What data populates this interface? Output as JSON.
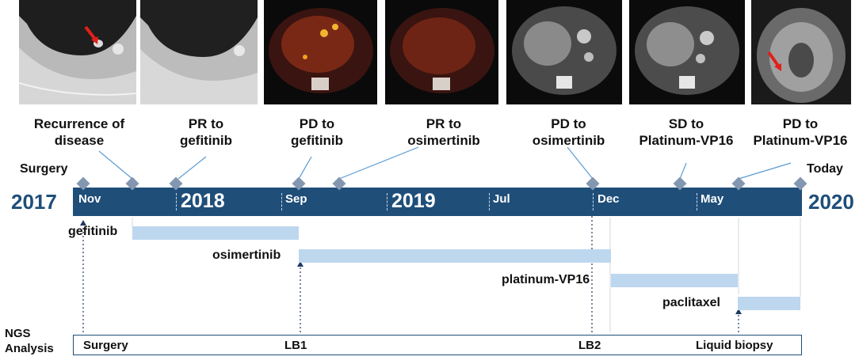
{
  "scans": [
    {
      "kind": "ct-lung",
      "arrow": true
    },
    {
      "kind": "ct-lung",
      "arrow": false
    },
    {
      "kind": "pet",
      "arrow": false
    },
    {
      "kind": "pet",
      "arrow": false
    },
    {
      "kind": "ct-abdomen",
      "arrow": false
    },
    {
      "kind": "ct-abdomen",
      "arrow": false
    },
    {
      "kind": "mri-brain",
      "arrow": true
    }
  ],
  "events": {
    "recurrence": "Recurrence of\ndisease",
    "pr_gefitinib": "PR to\ngefitinib",
    "pd_gefitinib": "PD to\ngefitinib",
    "pr_osimertinib": "PR to\nosimertinib",
    "pd_osimertinib": "PD to\nosimertinib",
    "sd_platinum": "SD to\nPlatinum-VP16",
    "pd_platinum": "PD to\nPlatinum-VP16"
  },
  "timeline": {
    "surgery": "Surgery",
    "today": "Today",
    "year_start": "2017",
    "year_end": "2020",
    "labels": {
      "nov": "Nov",
      "y2018": "2018",
      "sep": "Sep",
      "y2019": "2019",
      "jul": "Jul",
      "dec": "Dec",
      "may": "May"
    }
  },
  "drugs": {
    "gefitinib": "gefitinib",
    "osimertinib": "osimertinib",
    "platinum": "platinum-VP16",
    "paclitaxel": "paclitaxel"
  },
  "ngs": {
    "title": "NGS\nAnalysis",
    "surgery": "Surgery",
    "lb1": "LB1",
    "lb2": "LB2",
    "liquid": "Liquid biopsy"
  },
  "colors": {
    "timeline_bar": "#1f4e79",
    "drug_bar": "#bdd7ee",
    "diamond": "#8497b0",
    "connector": "#5b9bd5",
    "arrow": "#e0201a"
  }
}
